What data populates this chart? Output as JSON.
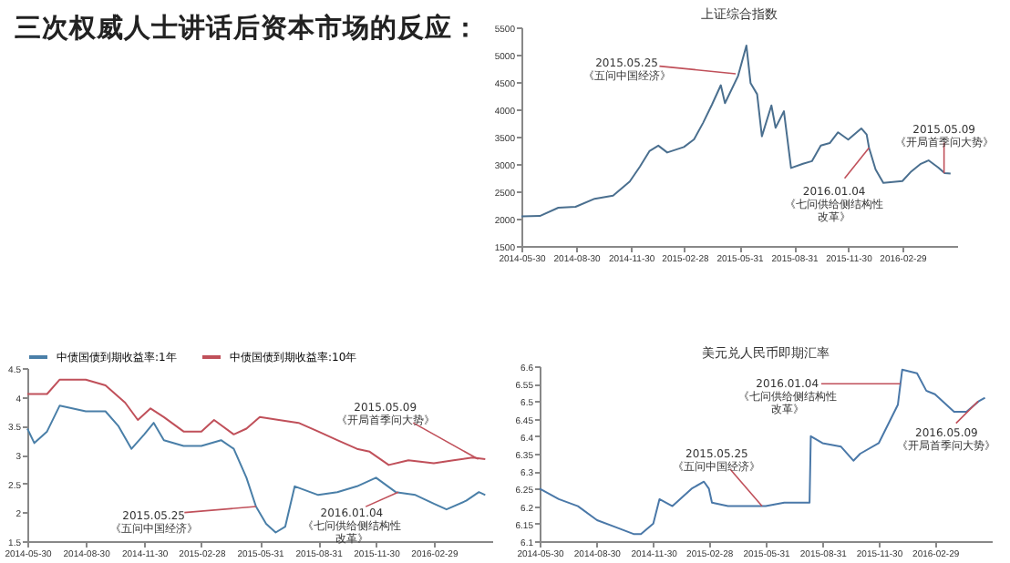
{
  "chart_data": [
    {
      "type": "line",
      "title": "上证综合指数",
      "annotations": [
        "三次权威人士讲话后资本市场的反应：",
        {
          "text": "2015.05.25《五问中国经济》",
          "x": "2015-05-25",
          "y": 4650
        },
        {
          "text": "2016.01.04《七问供给侧结构性改革》",
          "x": "2016-01-04",
          "y": 3296
        },
        {
          "text": "2015.05.09《开局首季问大势》",
          "x": "2016-05-09",
          "y": 2832
        }
      ],
      "x": [
        "2014-05-30",
        "2014-06-30",
        "2014-07-31",
        "2014-08-29",
        "2014-09-30",
        "2014-10-31",
        "2014-11-28",
        "2014-12-15",
        "2014-12-31",
        "2015-01-15",
        "2015-01-30",
        "2015-02-27",
        "2015-03-16",
        "2015-03-31",
        "2015-04-15",
        "2015-04-30",
        "2015-05-07",
        "2015-05-29",
        "2015-06-12",
        "2015-06-19",
        "2015-06-30",
        "2015-07-08",
        "2015-07-24",
        "2015-07-31",
        "2015-08-14",
        "2015-08-26",
        "2015-09-15",
        "2015-09-30",
        "2015-10-15",
        "2015-10-30",
        "2015-11-13",
        "2015-11-30",
        "2015-12-22",
        "2015-12-31",
        "2016-01-04",
        "2016-01-15",
        "2016-01-28",
        "2016-02-29",
        "2016-03-15",
        "2016-03-31",
        "2016-04-13",
        "2016-04-29",
        "2016-05-10",
        "2016-05-20"
      ],
      "series": [
        {
          "color": "#4a6f8f",
          "values": [
            2040,
            2048,
            2200,
            2217,
            2364,
            2420,
            2680,
            2950,
            3234,
            3336,
            3210,
            3310,
            3449,
            3748,
            4084,
            4441,
            4112,
            4611,
            5166,
            4478,
            4277,
            3507,
            4070,
            3663,
            3965,
            2927,
            3005,
            3052,
            3338,
            3382,
            3580,
            3445,
            3651,
            3539,
            3296,
            2900,
            2655,
            2687,
            2864,
            3003,
            3066,
            2938,
            2832,
            2825
          ]
        }
      ],
      "xlim": [
        "2014-05-30",
        "2016-05-31"
      ],
      "xticks": [
        "2014-05-30",
        "2014-08-30",
        "2014-11-30",
        "2015-02-28",
        "2015-05-31",
        "2015-08-31",
        "2015-11-30",
        "2016-02-29"
      ],
      "ylim": [
        1500,
        5500
      ],
      "yticks": [
        1500,
        2000,
        2500,
        3000,
        3500,
        4000,
        4500,
        5000,
        5500
      ],
      "grid": false
    },
    {
      "type": "line",
      "annotations": [
        {
          "text": "2015.05.25《五问中国经济》",
          "x": "2015-05-25",
          "y": 2.1
        },
        {
          "text": "2015.05.09《开局首季问大势》",
          "x": "2016-05-09",
          "y": 2.92
        },
        {
          "text": "2016.01.04《七问供给侧结构性改革》",
          "x": "2016-01-04",
          "y": 2.35
        }
      ],
      "series": [
        {
          "name": "中债国债到期收益率:1年",
          "color": "#4a7fa8",
          "x": [
            "2014-05-30",
            "2014-06-10",
            "2014-06-30",
            "2014-07-20",
            "2014-08-30",
            "2014-09-30",
            "2014-10-20",
            "2014-11-10",
            "2014-11-30",
            "2014-12-15",
            "2014-12-31",
            "2015-01-31",
            "2015-02-28",
            "2015-03-31",
            "2015-04-20",
            "2015-05-10",
            "2015-05-25",
            "2015-06-10",
            "2015-06-25",
            "2015-07-10",
            "2015-07-25",
            "2015-08-31",
            "2015-09-30",
            "2015-10-31",
            "2015-11-30",
            "2015-12-31",
            "2016-01-31",
            "2016-02-29",
            "2016-03-20",
            "2016-04-20",
            "2016-05-10",
            "2016-05-20"
          ],
          "values": [
            3.45,
            3.2,
            3.4,
            3.85,
            3.75,
            3.75,
            3.5,
            3.1,
            3.35,
            3.55,
            3.25,
            3.15,
            3.15,
            3.25,
            3.1,
            2.6,
            2.1,
            1.8,
            1.65,
            1.75,
            2.45,
            2.3,
            2.35,
            2.45,
            2.6,
            2.35,
            2.3,
            2.15,
            2.05,
            2.2,
            2.35,
            2.3
          ]
        },
        {
          "name": "中债国债到期收益率:10年",
          "color": "#c0505a",
          "x": [
            "2014-05-30",
            "2014-06-30",
            "2014-07-20",
            "2014-08-30",
            "2014-09-30",
            "2014-10-31",
            "2014-11-20",
            "2014-12-10",
            "2014-12-31",
            "2015-01-31",
            "2015-02-28",
            "2015-03-20",
            "2015-04-20",
            "2015-05-10",
            "2015-05-31",
            "2015-06-30",
            "2015-07-31",
            "2015-08-31",
            "2015-09-30",
            "2015-10-31",
            "2015-11-20",
            "2015-12-20",
            "2016-01-20",
            "2016-02-29",
            "2016-03-31",
            "2016-04-30",
            "2016-05-20"
          ],
          "values": [
            4.05,
            4.05,
            4.3,
            4.3,
            4.2,
            3.9,
            3.6,
            3.8,
            3.65,
            3.4,
            3.4,
            3.6,
            3.35,
            3.45,
            3.65,
            3.6,
            3.55,
            3.4,
            3.25,
            3.1,
            3.05,
            2.82,
            2.9,
            2.85,
            2.9,
            2.95,
            2.92
          ]
        }
      ],
      "xlim": [
        "2014-05-30",
        "2016-05-31"
      ],
      "xticks": [
        "2014-05-30",
        "2014-08-30",
        "2014-11-30",
        "2015-02-28",
        "2015-05-31",
        "2015-08-31",
        "2015-11-30",
        "2016-02-29"
      ],
      "ylim": [
        1.5,
        4.5
      ],
      "yticks": [
        1.5,
        2,
        2.5,
        3,
        3.5,
        4,
        4.5
      ],
      "grid": false,
      "legend": "top"
    },
    {
      "type": "line",
      "title": "美元兑人民币即期汇率",
      "annotations": [
        {
          "text": "2015.05.25《五问中国经济》",
          "x": "2015-05-25",
          "y": 6.2
        },
        {
          "text": "2016.01.04《七问供给侧结构性改革》",
          "x": "2016-01-04",
          "y": 6.55
        },
        {
          "text": "2016.05.09《开局首季问大势》",
          "x": "2016-05-09",
          "y": 6.5
        }
      ],
      "x": [
        "2014-05-30",
        "2014-06-30",
        "2014-07-31",
        "2014-08-31",
        "2014-09-30",
        "2014-10-30",
        "2014-11-10",
        "2014-11-30",
        "2014-12-10",
        "2014-12-31",
        "2015-01-31",
        "2015-02-20",
        "2015-02-28",
        "2015-03-05",
        "2015-03-31",
        "2015-04-30",
        "2015-05-31",
        "2015-06-30",
        "2015-07-31",
        "2015-08-10",
        "2015-08-12",
        "2015-08-31",
        "2015-09-30",
        "2015-10-20",
        "2015-10-31",
        "2015-11-30",
        "2015-12-31",
        "2016-01-07",
        "2016-01-31",
        "2016-02-15",
        "2016-02-29",
        "2016-03-31",
        "2016-04-20",
        "2016-05-10",
        "2016-05-20"
      ],
      "series": [
        {
          "color": "#4a78a8",
          "values": [
            6.25,
            6.22,
            6.2,
            6.16,
            6.14,
            6.12,
            6.12,
            6.15,
            6.22,
            6.2,
            6.25,
            6.27,
            6.25,
            6.21,
            6.2,
            6.2,
            6.2,
            6.21,
            6.21,
            6.21,
            6.4,
            6.38,
            6.37,
            6.33,
            6.35,
            6.38,
            6.49,
            6.59,
            6.58,
            6.53,
            6.52,
            6.47,
            6.47,
            6.5,
            6.51
          ]
        }
      ],
      "xlim": [
        "2014-05-30",
        "2016-05-31"
      ],
      "xticks": [
        "2014-05-30",
        "2014-08-30",
        "2014-11-30",
        "2015-02-28",
        "2015-05-31",
        "2015-08-31",
        "2015-11-30",
        "2016-02-29"
      ],
      "ylim": [
        6.1,
        6.6
      ],
      "yticks": [
        6.1,
        6.15,
        6.2,
        6.25,
        6.3,
        6.35,
        6.4,
        6.45,
        6.5,
        6.55,
        6.6
      ],
      "grid": false
    }
  ]
}
